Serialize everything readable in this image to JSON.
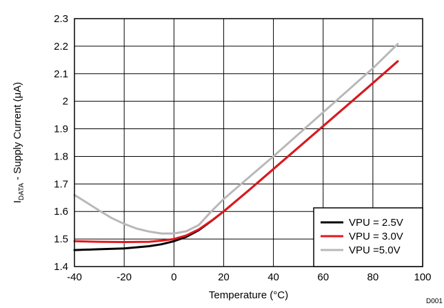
{
  "chart_data": {
    "type": "line",
    "xlabel": "Temperature (°C)",
    "ylabel_main": "I",
    "ylabel_sub": "DATA",
    "ylabel_rest": " - Supply Current (",
    "ylabel_mu": "μ",
    "ylabel_end": "A)",
    "xlim": [
      -40,
      100
    ],
    "ylim": [
      1.4,
      2.3
    ],
    "x_ticks": [
      -40,
      -20,
      0,
      20,
      40,
      60,
      80,
      100
    ],
    "x_tick_labels": [
      "-40",
      "-20",
      "0",
      "20",
      "40",
      "60",
      "80",
      "100"
    ],
    "y_ticks": [
      1.4,
      1.5,
      1.6,
      1.7,
      1.8,
      1.9,
      2.0,
      2.1,
      2.2,
      2.3
    ],
    "y_tick_labels": [
      "1.4",
      "1.5",
      "1.6",
      "1.7",
      "1.8",
      "1.9",
      "2",
      "2.1",
      "2.2",
      "2.3"
    ],
    "grid": true,
    "legend_position": "bottom-right",
    "corner_code": "D001",
    "series": [
      {
        "name": "VPU = 2.5V",
        "color": "#000000",
        "x": [
          -40,
          -30,
          -20,
          -10,
          -5,
          0,
          5,
          10,
          15,
          20,
          30,
          40,
          50,
          60,
          70,
          80,
          90
        ],
        "y": [
          1.46,
          1.463,
          1.466,
          1.474,
          1.481,
          1.492,
          1.508,
          1.532,
          1.565,
          1.6,
          1.676,
          1.754,
          1.832,
          1.91,
          1.988,
          2.066,
          2.145
        ]
      },
      {
        "name": "VPU = 3.0V",
        "color": "#e0171d",
        "x": [
          -40,
          -30,
          -20,
          -10,
          -5,
          0,
          5,
          10,
          15,
          20,
          30,
          40,
          50,
          60,
          70,
          80,
          90
        ],
        "y": [
          1.492,
          1.49,
          1.489,
          1.49,
          1.494,
          1.5,
          1.513,
          1.535,
          1.566,
          1.6,
          1.676,
          1.754,
          1.832,
          1.91,
          1.988,
          2.066,
          2.145
        ]
      },
      {
        "name": "VPU =5.0V",
        "color": "#b8b8b8",
        "x": [
          -40,
          -35,
          -30,
          -25,
          -20,
          -15,
          -10,
          -5,
          0,
          5,
          10,
          15,
          20,
          30,
          40,
          50,
          60,
          70,
          80,
          90
        ],
        "y": [
          1.66,
          1.632,
          1.603,
          1.576,
          1.555,
          1.538,
          1.527,
          1.52,
          1.52,
          1.528,
          1.551,
          1.6,
          1.645,
          1.723,
          1.8,
          1.88,
          1.96,
          2.04,
          2.12,
          2.208
        ]
      }
    ]
  }
}
